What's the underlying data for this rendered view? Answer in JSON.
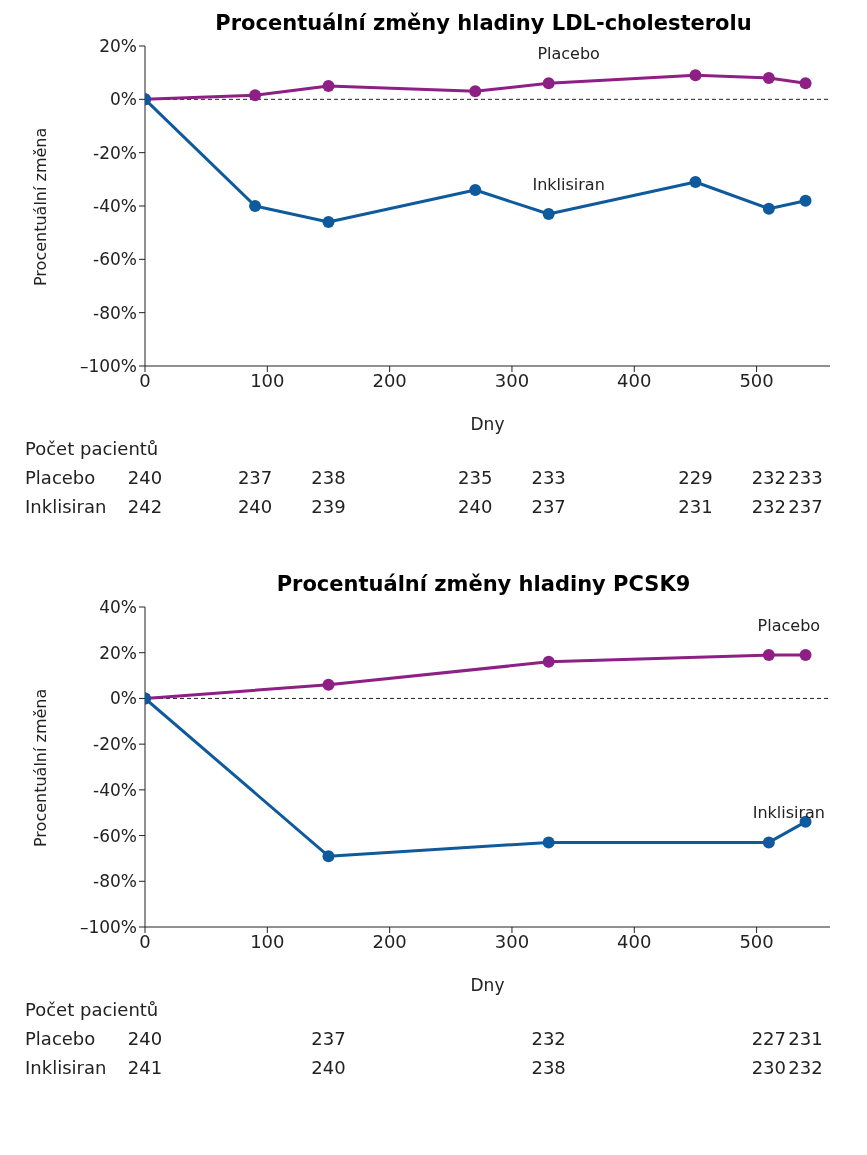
{
  "chart_data": [
    {
      "type": "line",
      "title": "Procentuální změny hladiny LDL-cholesterolu",
      "xlabel": "Dny",
      "ylabel": "Procentuální změna",
      "xlim": [
        0,
        560
      ],
      "xticks": [
        0,
        100,
        200,
        300,
        400,
        500
      ],
      "ylim": [
        -100,
        20
      ],
      "yticks": [
        {
          "value": -100,
          "label": "–100%"
        },
        {
          "value": -80,
          "label": "-80%"
        },
        {
          "value": -60,
          "label": "-60%"
        },
        {
          "value": -40,
          "label": "-40%"
        },
        {
          "value": -20,
          "label": "-20%"
        },
        {
          "value": 0,
          "label": "0%"
        },
        {
          "value": 20,
          "label": "20%"
        }
      ],
      "legend": false,
      "marker": "circle",
      "line_style": "solid",
      "ref_lines": [
        {
          "axis": "y",
          "value": 0,
          "color": "#222222",
          "line_style": "dashed"
        }
      ],
      "series": [
        {
          "name": "Placebo",
          "color": "#8e1f84",
          "x": [
            0,
            90,
            150,
            270,
            330,
            450,
            510,
            540
          ],
          "values": [
            0,
            1.5,
            5,
            3,
            6,
            9,
            8,
            6
          ]
        },
        {
          "name": "Inklisiran",
          "color": "#0f5a9c",
          "x": [
            0,
            90,
            150,
            270,
            330,
            450,
            510,
            540
          ],
          "values": [
            0,
            -40,
            -46,
            -34,
            -43,
            -31,
            -41,
            -38
          ]
        }
      ],
      "annotations": [
        "Počet pacientů",
        "Placebo",
        "240",
        "237",
        "238",
        "235",
        "233",
        "229",
        "232",
        "233",
        "Inklisiran",
        "242",
        "240",
        "239",
        "240",
        "237",
        "231",
        "232",
        "237"
      ]
    },
    {
      "type": "line",
      "title": "Procentuální změny hladiny PCSK9",
      "xlabel": "Dny",
      "ylabel": "Procentuální změna",
      "xlim": [
        0,
        560
      ],
      "xticks": [
        0,
        100,
        200,
        300,
        400,
        500
      ],
      "ylim": [
        -100,
        40
      ],
      "yticks": [
        {
          "value": -100,
          "label": "–100%"
        },
        {
          "value": -80,
          "label": "-80%"
        },
        {
          "value": -60,
          "label": "-60%"
        },
        {
          "value": -40,
          "label": "-40%"
        },
        {
          "value": -20,
          "label": "-20%"
        },
        {
          "value": 0,
          "label": "0%"
        },
        {
          "value": 20,
          "label": "20%"
        },
        {
          "value": 40,
          "label": "40%"
        }
      ],
      "legend": false,
      "marker": "circle",
      "line_style": "solid",
      "ref_lines": [
        {
          "axis": "y",
          "value": 0,
          "color": "#222222",
          "line_style": "dashed"
        }
      ],
      "series": [
        {
          "name": "Placebo",
          "color": "#8e1f84",
          "x": [
            0,
            150,
            330,
            510,
            540
          ],
          "values": [
            0,
            6,
            16,
            19,
            19
          ]
        },
        {
          "name": "Inklisiran",
          "color": "#0f5a9c",
          "x": [
            0,
            150,
            330,
            510,
            540
          ],
          "values": [
            0,
            -69,
            -63,
            -63,
            -54
          ]
        }
      ],
      "annotations": [
        "Počet pacientů",
        "Placebo",
        "240",
        "237",
        "232",
        "227",
        "231",
        "Inklisiran",
        "241",
        "240",
        "238",
        "230",
        "232"
      ]
    }
  ]
}
